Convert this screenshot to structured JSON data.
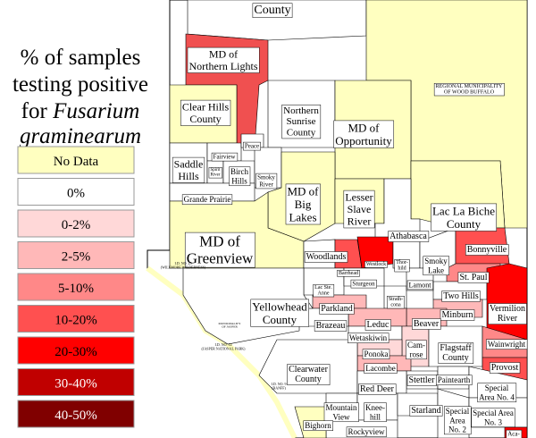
{
  "legend": {
    "title_lines": [
      "% of samples",
      "testing positive",
      "for",
      "Fusarium",
      "graminearum"
    ],
    "items": [
      {
        "label": "No Data",
        "color": "#ffffc0"
      },
      {
        "label": "0%",
        "color": "#ffffff"
      },
      {
        "label": "0-2%",
        "color": "#ffd8d8"
      },
      {
        "label": "2-5%",
        "color": "#ffb8b8"
      },
      {
        "label": "5-10%",
        "color": "#ff8888"
      },
      {
        "label": "10-20%",
        "color": "#ff5050"
      },
      {
        "label": "20-30%",
        "color": "#ff0000"
      },
      {
        "label": "30-40%",
        "color": "#c00000"
      },
      {
        "label": "40-50%",
        "color": "#800000"
      }
    ]
  },
  "regions": [
    {
      "label": [
        "County"
      ],
      "color": "#ffffff"
    },
    {
      "label": [
        "REGIONAL MUNICIPALITY",
        "OF WOOD BUFFALO"
      ],
      "color": "#ffffc0"
    },
    {
      "label": [
        "MD of",
        "Northern Lights"
      ],
      "color": "#f05050"
    },
    {
      "label": [
        "Clear Hills",
        "County"
      ],
      "color": "#ffffc0"
    },
    {
      "label": [
        "Northern",
        "Sunrise",
        "County"
      ],
      "color": "#ffffff"
    },
    {
      "label": [
        "MD of",
        "Opportunity"
      ],
      "color": "#ffffc0"
    },
    {
      "label": [
        "Saddle",
        "Hills"
      ],
      "color": "#ffffff"
    },
    {
      "label": [
        "Fairview"
      ],
      "color": "#ffffff"
    },
    {
      "label": [
        "Peace"
      ],
      "color": "#ffffff"
    },
    {
      "label": [
        "Spirit",
        "River"
      ],
      "color": "#ffffff"
    },
    {
      "label": [
        "Birch",
        "Hills"
      ],
      "color": "#ffffff"
    },
    {
      "label": [
        "Smoky",
        "River"
      ],
      "color": "#ffffff"
    },
    {
      "label": [
        "Grande Prairie"
      ],
      "color": "#ffffff"
    },
    {
      "label": [
        "MD of",
        "Big",
        "Lakes"
      ],
      "color": "#ffffc0"
    },
    {
      "label": [
        "Lesser",
        "Slave",
        "River"
      ],
      "color": "#ffffc0"
    },
    {
      "label": [
        "Lac La Biche",
        "County"
      ],
      "color": "#ffffc0"
    },
    {
      "label": [
        "Athabasca"
      ],
      "color": "#ffffff"
    },
    {
      "label": [
        "MD of",
        "Greenview"
      ],
      "color": "#ffffc0"
    },
    {
      "label": [
        "Woodlands"
      ],
      "color": "#ffffff"
    },
    {
      "label": [
        "Barrhead"
      ],
      "color": "#ff5050"
    },
    {
      "label": [
        "Westlock"
      ],
      "color": "#ff0000"
    },
    {
      "label": [
        "Thor-",
        "hild"
      ],
      "color": "#ffffff"
    },
    {
      "label": [
        "Smoky",
        "Lake"
      ],
      "color": "#ffffff"
    },
    {
      "label": [
        "Bonnyville"
      ],
      "color": "#ff5050"
    },
    {
      "label": [
        "St. Paul"
      ],
      "color": "#ff8888"
    },
    {
      "label": [
        "Two Hills"
      ],
      "color": "#ffffff"
    },
    {
      "label": [
        "Vermilion",
        "River"
      ],
      "color": "#ff0000"
    },
    {
      "label": [
        "Lac Ste.",
        "Anne"
      ],
      "color": "#ffffff"
    },
    {
      "label": [
        "Sturgeon"
      ],
      "color": "#ffffff"
    },
    {
      "label": [
        "Strath-",
        "cona"
      ],
      "color": "#ffffff"
    },
    {
      "label": [
        "Lamont"
      ],
      "color": "#ffffff"
    },
    {
      "label": [
        "Parkland"
      ],
      "color": "#ffb8b8"
    },
    {
      "label": [
        "Minburn"
      ],
      "color": "#ffb8b8"
    },
    {
      "label": [
        "Beaver"
      ],
      "color": "#ffb8b8"
    },
    {
      "label": [
        "Leduc"
      ],
      "color": "#ffb8b8"
    },
    {
      "label": [
        "Brazeau"
      ],
      "color": "#ffffff"
    },
    {
      "label": [
        "Yellowhead",
        "County"
      ],
      "color": "#ffffff"
    },
    {
      "label": [
        "Wetaskiwin"
      ],
      "color": "#ffffff"
    },
    {
      "label": [
        "Cam-",
        "rose"
      ],
      "color": "#ffd8d8"
    },
    {
      "label": [
        "Ponoka"
      ],
      "color": "#ffd8d8"
    },
    {
      "label": [
        "Flagstaff",
        "County"
      ],
      "color": "#ffffff"
    },
    {
      "label": [
        "Wainwright"
      ],
      "color": "#ff8888"
    },
    {
      "label": [
        "Lacombe"
      ],
      "color": "#ffb8b8"
    },
    {
      "label": [
        "Clearwater",
        "County"
      ],
      "color": "#ffffff"
    },
    {
      "label": [
        "Provost"
      ],
      "color": "#ff5050"
    },
    {
      "label": [
        "Stettler"
      ],
      "color": "#ffffff"
    },
    {
      "label": [
        "Paintearth"
      ],
      "color": "#ffffff"
    },
    {
      "label": [
        "Red Deer"
      ],
      "color": "#ffffff"
    },
    {
      "label": [
        "Special",
        "Area No. 4"
      ],
      "color": "#ffffff"
    },
    {
      "label": [
        "Mountain",
        "View"
      ],
      "color": "#ffffff"
    },
    {
      "label": [
        "Knee-",
        "hill"
      ],
      "color": "#ffffff"
    },
    {
      "label": [
        "Starland"
      ],
      "color": "#ffffff"
    },
    {
      "label": [
        "Special",
        "Area",
        "No. 2"
      ],
      "color": "#ffffff"
    },
    {
      "label": [
        "Special Area",
        "No. 3"
      ],
      "color": "#ffffff"
    },
    {
      "label": [
        "Rockyview"
      ],
      "color": "#ffffff"
    },
    {
      "label": [
        "Bighorn"
      ],
      "color": "#ffffc0"
    },
    {
      "label": [
        "Aca-",
        "dia"
      ],
      "color": "#ff0000"
    },
    {
      "label": [
        "I.D. NO. 25",
        "(WILLMORE WILDERNESS)"
      ],
      "color": "#ffffff"
    },
    {
      "label": [
        "I.D. NO. 12",
        "(JASPER NATIONAL PARK)"
      ],
      "color": "#ffffff"
    },
    {
      "label": [
        "MUNICIPALITY",
        "OF JASPER"
      ],
      "color": "#ffffff"
    },
    {
      "label": [
        "I.D. NO. 9",
        "(BANFF)"
      ],
      "color": "#ffffff"
    }
  ]
}
